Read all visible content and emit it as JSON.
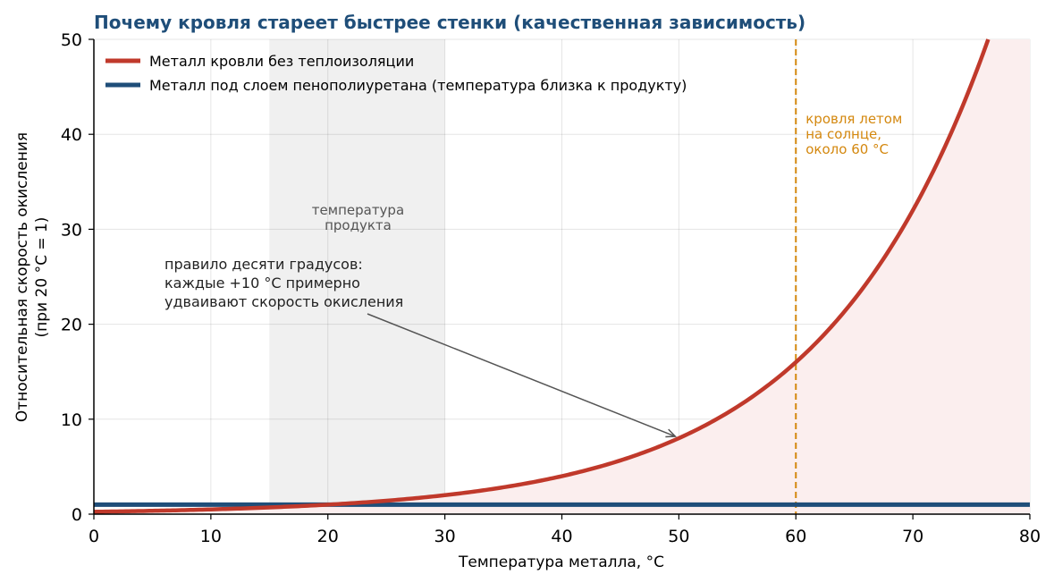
{
  "chart_data": {
    "type": "line",
    "title": "Почему кровля стареет быстрее стенки (качественная зависимость)",
    "xlabel": "Температура металла, °C",
    "ylabel_lines": [
      "Относительная скорость окисления",
      "(при 20 °C = 1)"
    ],
    "xlim": [
      0,
      80
    ],
    "ylim": [
      0,
      50
    ],
    "xticks": [
      0,
      10,
      20,
      30,
      40,
      50,
      60,
      70,
      80
    ],
    "yticks": [
      0,
      10,
      20,
      30,
      40,
      50
    ],
    "grid": true,
    "legend_position": "top-left",
    "series": [
      {
        "name": "Металл кровли без теплоизоляции",
        "color": "#c0392b",
        "formula": "2^((T-20)/10)",
        "x": [
          0,
          10,
          20,
          30,
          40,
          50,
          60,
          70,
          76.4
        ],
        "values": [
          0.25,
          0.5,
          1,
          2,
          4,
          8,
          16,
          32,
          50
        ],
        "fill": "#fbeeee"
      },
      {
        "name": "Металл под слоем пенополиуретана (температура близка к продукту)",
        "color": "#1f4e79",
        "x": [
          0,
          80
        ],
        "values": [
          1,
          1
        ]
      }
    ],
    "band": {
      "x": [
        15,
        30
      ],
      "color": "#f0f0f0",
      "label_lines": [
        "температура",
        "продукта"
      ]
    },
    "vline": {
      "x": 60,
      "color": "#d4880f",
      "label_lines": [
        "кровля летом",
        "на солнце,",
        "около 60 °C"
      ]
    },
    "annotation": {
      "text_lines": [
        "правило десяти градусов:",
        "каждые +10 °C примерно",
        "удваивают скорость окисления"
      ],
      "arrow_to": [
        50,
        8
      ]
    }
  }
}
